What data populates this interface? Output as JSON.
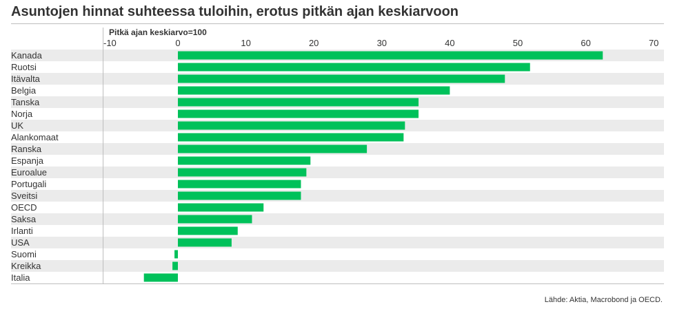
{
  "page": {
    "title": "Asuntojen hinnat suhteessa tuloihin, erotus pitkän ajan keskiarvoon",
    "source": "Lähde: Aktia, Macrobond ja OECD."
  },
  "colors": {
    "bar": "#00c15a",
    "band": "#ebebeb",
    "text": "#333333",
    "axis": "#bdbdbd"
  },
  "chart_data": {
    "type": "bar",
    "orientation": "horizontal",
    "subtitle": "Pitkä ajan keskiarvo=100",
    "categories": [
      "Kanada",
      "Ruotsi",
      "Itävalta",
      "Belgia",
      "Tanska",
      "Norja",
      "UK",
      "Alankomaat",
      "Ranska",
      "Espanja",
      "Euroalue",
      "Portugali",
      "Sveitsi",
      "OECD",
      "Saksa",
      "Irlanti",
      "USA",
      "Suomi",
      "Kreikka",
      "Italia"
    ],
    "values": [
      62.5,
      51.8,
      48.1,
      40.0,
      35.4,
      35.4,
      33.4,
      33.2,
      27.8,
      19.5,
      18.9,
      18.1,
      18.1,
      12.6,
      10.9,
      8.8,
      7.9,
      -0.5,
      -0.8,
      -5.0
    ],
    "xlim": [
      -11,
      70
    ],
    "xticks": [
      -10,
      0,
      10,
      20,
      30,
      40,
      50,
      60,
      70
    ],
    "xtick_labels": [
      "-10",
      "0",
      "10",
      "20",
      "30",
      "40",
      "50",
      "60",
      "70"
    ],
    "axis_position": "top",
    "grid": false,
    "legend": "none"
  }
}
